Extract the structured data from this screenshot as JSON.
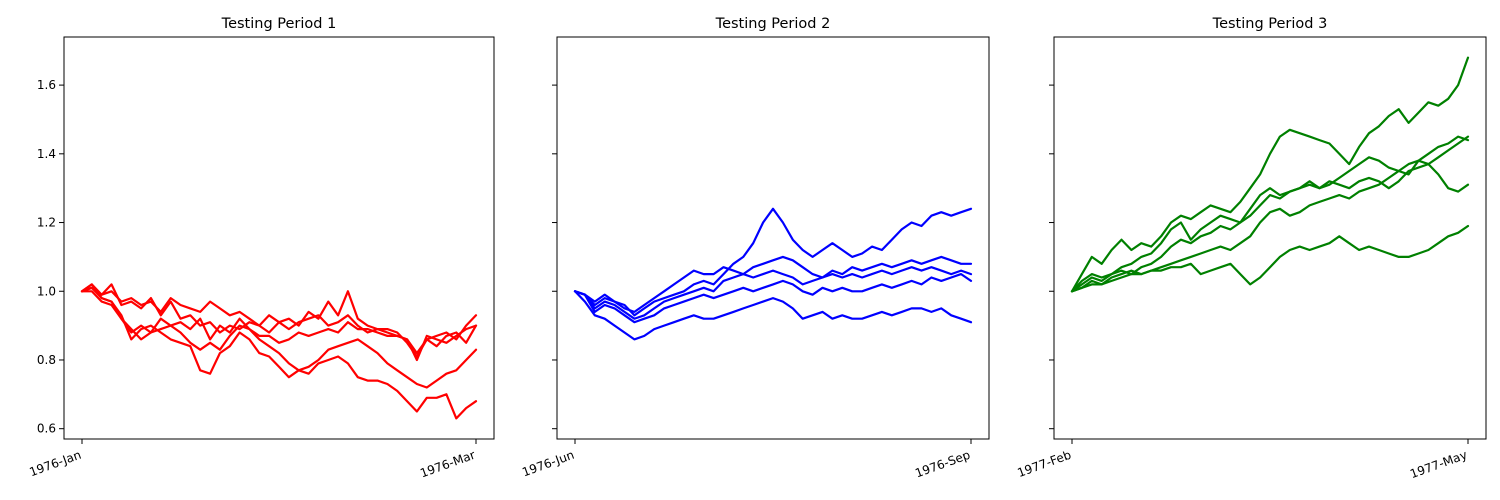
{
  "chart_data": [
    {
      "type": "line",
      "title": "Testing Period 1",
      "color": "#ff0000",
      "x_tick_labels": [
        "1976-Jan",
        "1976-Mar"
      ],
      "y_ticks": [
        0.6,
        0.8,
        1.0,
        1.2,
        1.4,
        1.6
      ],
      "ylim": [
        0.57,
        1.74
      ],
      "series": [
        {
          "values": [
            1.0,
            1.02,
            0.99,
            1.0,
            0.97,
            0.98,
            0.96,
            0.97,
            0.94,
            0.98,
            0.96,
            0.95,
            0.94,
            0.97,
            0.95,
            0.93,
            0.94,
            0.92,
            0.9,
            0.93,
            0.91,
            0.92,
            0.9,
            0.94,
            0.92,
            0.97,
            0.93,
            1.0,
            0.92,
            0.9,
            0.89,
            0.88,
            0.87,
            0.86,
            0.82,
            0.86,
            0.87,
            0.88,
            0.86,
            0.9,
            0.93
          ]
        },
        {
          "values": [
            1.0,
            1.01,
            0.99,
            1.02,
            0.96,
            0.97,
            0.95,
            0.98,
            0.93,
            0.97,
            0.92,
            0.93,
            0.9,
            0.91,
            0.88,
            0.9,
            0.89,
            0.91,
            0.9,
            0.88,
            0.91,
            0.89,
            0.91,
            0.92,
            0.93,
            0.9,
            0.91,
            0.93,
            0.9,
            0.88,
            0.89,
            0.89,
            0.88,
            0.85,
            0.81,
            0.86,
            0.84,
            0.87,
            0.88,
            0.85,
            0.9
          ]
        },
        {
          "values": [
            1.0,
            1.01,
            0.98,
            0.97,
            0.92,
            0.88,
            0.9,
            0.88,
            0.92,
            0.9,
            0.91,
            0.89,
            0.92,
            0.86,
            0.9,
            0.88,
            0.92,
            0.89,
            0.87,
            0.87,
            0.85,
            0.86,
            0.88,
            0.87,
            0.88,
            0.89,
            0.88,
            0.91,
            0.89,
            0.89,
            0.88,
            0.87,
            0.87,
            0.86,
            0.8,
            0.87,
            0.86,
            0.85,
            0.87,
            0.89,
            0.9
          ]
        },
        {
          "values": [
            1.0,
            1.0,
            0.97,
            0.96,
            0.92,
            0.89,
            0.86,
            0.88,
            0.89,
            0.9,
            0.88,
            0.85,
            0.83,
            0.85,
            0.83,
            0.87,
            0.9,
            0.89,
            0.86,
            0.84,
            0.82,
            0.79,
            0.77,
            0.78,
            0.8,
            0.83,
            0.84,
            0.85,
            0.86,
            0.84,
            0.82,
            0.79,
            0.77,
            0.75,
            0.73,
            0.72,
            0.74,
            0.76,
            0.77,
            0.8,
            0.83
          ]
        },
        {
          "values": [
            1.0,
            1.02,
            0.98,
            0.97,
            0.93,
            0.86,
            0.89,
            0.9,
            0.88,
            0.86,
            0.85,
            0.84,
            0.77,
            0.76,
            0.82,
            0.84,
            0.88,
            0.86,
            0.82,
            0.81,
            0.78,
            0.75,
            0.77,
            0.76,
            0.79,
            0.8,
            0.81,
            0.79,
            0.75,
            0.74,
            0.74,
            0.73,
            0.71,
            0.68,
            0.65,
            0.69,
            0.69,
            0.7,
            0.63,
            0.66,
            0.68
          ]
        }
      ]
    },
    {
      "type": "line",
      "title": "Testing Period 2",
      "color": "#0000ff",
      "x_tick_labels": [
        "1976-Jun",
        "1976-Sep"
      ],
      "y_ticks": [
        0.6,
        0.8,
        1.0,
        1.2,
        1.4,
        1.6
      ],
      "ylim": [
        0.57,
        1.74
      ],
      "series": [
        {
          "values": [
            1.0,
            0.99,
            0.96,
            0.98,
            0.97,
            0.96,
            0.93,
            0.95,
            0.97,
            0.98,
            0.99,
            1.0,
            1.02,
            1.03,
            1.02,
            1.05,
            1.08,
            1.1,
            1.14,
            1.2,
            1.24,
            1.2,
            1.15,
            1.12,
            1.1,
            1.12,
            1.14,
            1.12,
            1.1,
            1.11,
            1.13,
            1.12,
            1.15,
            1.18,
            1.2,
            1.19,
            1.22,
            1.23,
            1.22,
            1.23,
            1.24
          ]
        },
        {
          "values": [
            1.0,
            0.99,
            0.97,
            0.99,
            0.97,
            0.95,
            0.94,
            0.96,
            0.98,
            1.0,
            1.02,
            1.04,
            1.06,
            1.05,
            1.05,
            1.07,
            1.06,
            1.05,
            1.07,
            1.08,
            1.09,
            1.1,
            1.09,
            1.07,
            1.05,
            1.04,
            1.06,
            1.05,
            1.07,
            1.06,
            1.07,
            1.08,
            1.07,
            1.08,
            1.09,
            1.08,
            1.09,
            1.1,
            1.09,
            1.08,
            1.08
          ]
        },
        {
          "values": [
            1.0,
            0.99,
            0.95,
            0.97,
            0.96,
            0.94,
            0.92,
            0.93,
            0.95,
            0.97,
            0.98,
            0.99,
            1.0,
            1.01,
            1.0,
            1.03,
            1.04,
            1.05,
            1.04,
            1.05,
            1.06,
            1.05,
            1.04,
            1.02,
            1.03,
            1.04,
            1.05,
            1.04,
            1.05,
            1.04,
            1.05,
            1.06,
            1.05,
            1.06,
            1.07,
            1.06,
            1.07,
            1.06,
            1.05,
            1.06,
            1.05
          ]
        },
        {
          "values": [
            1.0,
            0.99,
            0.94,
            0.96,
            0.95,
            0.93,
            0.91,
            0.92,
            0.93,
            0.95,
            0.96,
            0.97,
            0.98,
            0.99,
            0.98,
            0.99,
            1.0,
            1.01,
            1.0,
            1.01,
            1.02,
            1.03,
            1.02,
            1.0,
            0.99,
            1.01,
            1.0,
            1.01,
            1.0,
            1.0,
            1.01,
            1.02,
            1.01,
            1.02,
            1.03,
            1.02,
            1.04,
            1.03,
            1.04,
            1.05,
            1.03
          ]
        },
        {
          "values": [
            1.0,
            0.97,
            0.93,
            0.92,
            0.9,
            0.88,
            0.86,
            0.87,
            0.89,
            0.9,
            0.91,
            0.92,
            0.93,
            0.92,
            0.92,
            0.93,
            0.94,
            0.95,
            0.96,
            0.97,
            0.98,
            0.97,
            0.95,
            0.92,
            0.93,
            0.94,
            0.92,
            0.93,
            0.92,
            0.92,
            0.93,
            0.94,
            0.93,
            0.94,
            0.95,
            0.95,
            0.94,
            0.95,
            0.93,
            0.92,
            0.91
          ]
        }
      ]
    },
    {
      "type": "line",
      "title": "Testing Period 3",
      "color": "#008000",
      "x_tick_labels": [
        "1977-Feb",
        "1977-May"
      ],
      "y_ticks": [
        0.6,
        0.8,
        1.0,
        1.2,
        1.4,
        1.6
      ],
      "ylim": [
        0.57,
        1.74
      ],
      "series": [
        {
          "values": [
            1.0,
            1.05,
            1.1,
            1.08,
            1.12,
            1.15,
            1.12,
            1.14,
            1.13,
            1.16,
            1.2,
            1.22,
            1.21,
            1.23,
            1.25,
            1.24,
            1.23,
            1.26,
            1.3,
            1.34,
            1.4,
            1.45,
            1.47,
            1.46,
            1.45,
            1.44,
            1.43,
            1.4,
            1.37,
            1.42,
            1.46,
            1.48,
            1.51,
            1.53,
            1.49,
            1.52,
            1.55,
            1.54,
            1.56,
            1.6,
            1.68
          ]
        },
        {
          "values": [
            1.0,
            1.03,
            1.05,
            1.04,
            1.05,
            1.07,
            1.08,
            1.1,
            1.11,
            1.14,
            1.18,
            1.2,
            1.15,
            1.18,
            1.2,
            1.22,
            1.21,
            1.2,
            1.24,
            1.28,
            1.3,
            1.28,
            1.29,
            1.3,
            1.32,
            1.3,
            1.31,
            1.33,
            1.35,
            1.37,
            1.39,
            1.38,
            1.36,
            1.35,
            1.34,
            1.38,
            1.4,
            1.42,
            1.43,
            1.45,
            1.44
          ]
        },
        {
          "values": [
            1.0,
            1.02,
            1.04,
            1.03,
            1.05,
            1.06,
            1.05,
            1.07,
            1.08,
            1.1,
            1.13,
            1.15,
            1.14,
            1.16,
            1.17,
            1.19,
            1.18,
            1.2,
            1.22,
            1.25,
            1.28,
            1.27,
            1.29,
            1.3,
            1.31,
            1.3,
            1.32,
            1.31,
            1.3,
            1.32,
            1.33,
            1.32,
            1.3,
            1.32,
            1.35,
            1.36,
            1.37,
            1.34,
            1.3,
            1.29,
            1.31
          ]
        },
        {
          "values": [
            1.0,
            1.01,
            1.03,
            1.02,
            1.04,
            1.05,
            1.06,
            1.05,
            1.06,
            1.07,
            1.08,
            1.09,
            1.1,
            1.11,
            1.12,
            1.13,
            1.12,
            1.14,
            1.16,
            1.2,
            1.23,
            1.24,
            1.22,
            1.23,
            1.25,
            1.26,
            1.27,
            1.28,
            1.27,
            1.29,
            1.3,
            1.31,
            1.33,
            1.35,
            1.37,
            1.38,
            1.37,
            1.39,
            1.41,
            1.43,
            1.45
          ]
        },
        {
          "values": [
            1.0,
            1.01,
            1.02,
            1.02,
            1.03,
            1.04,
            1.05,
            1.05,
            1.06,
            1.06,
            1.07,
            1.07,
            1.08,
            1.05,
            1.06,
            1.07,
            1.08,
            1.05,
            1.02,
            1.04,
            1.07,
            1.1,
            1.12,
            1.13,
            1.12,
            1.13,
            1.14,
            1.16,
            1.14,
            1.12,
            1.13,
            1.12,
            1.11,
            1.1,
            1.1,
            1.11,
            1.12,
            1.14,
            1.16,
            1.17,
            1.19
          ]
        }
      ]
    }
  ]
}
